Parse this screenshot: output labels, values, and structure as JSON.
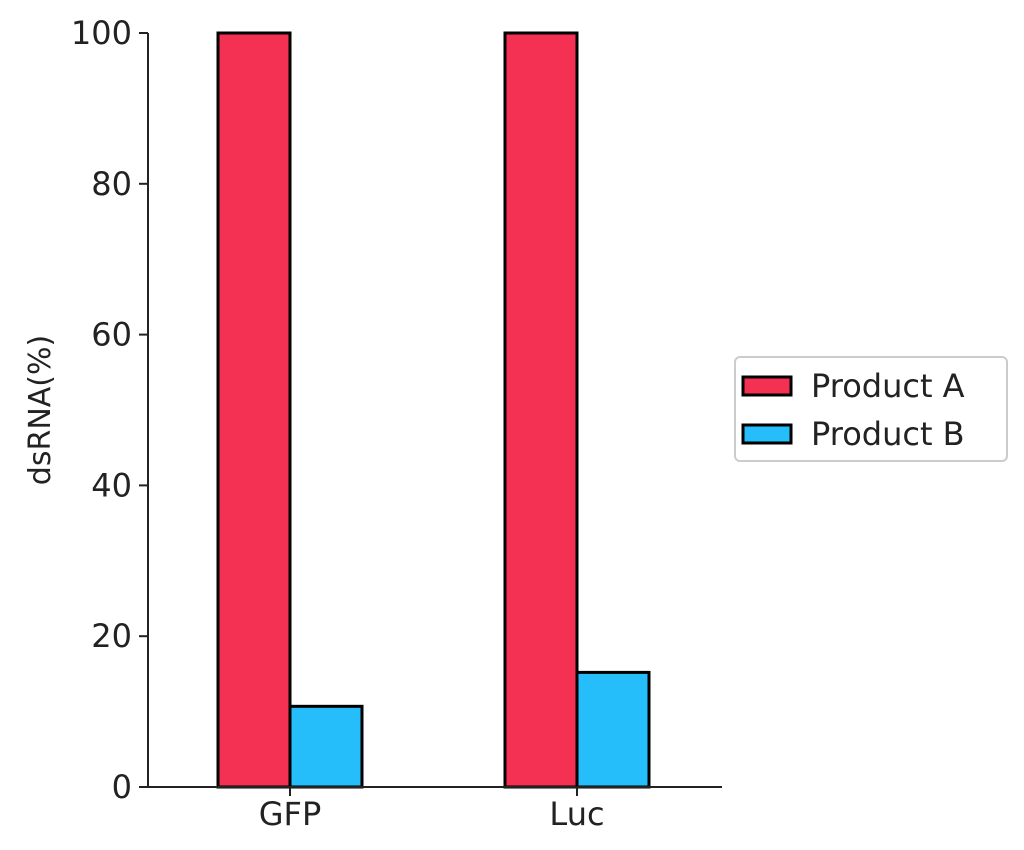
{
  "chart_data": {
    "type": "bar",
    "title": "",
    "xlabel": "",
    "ylabel": "dsRNA(%)",
    "categories": [
      "GFP",
      "Luc"
    ],
    "series": [
      {
        "name": "Product A",
        "values": [
          100,
          100
        ],
        "color": "#f43152"
      },
      {
        "name": "Product B",
        "values": [
          10.7,
          15.2
        ],
        "color": "#26bdfb"
      }
    ],
    "ylim": [
      0,
      100
    ],
    "yticks": [
      0,
      20,
      40,
      60,
      80,
      100
    ],
    "grid": false,
    "legend_position": "center-right outside"
  }
}
